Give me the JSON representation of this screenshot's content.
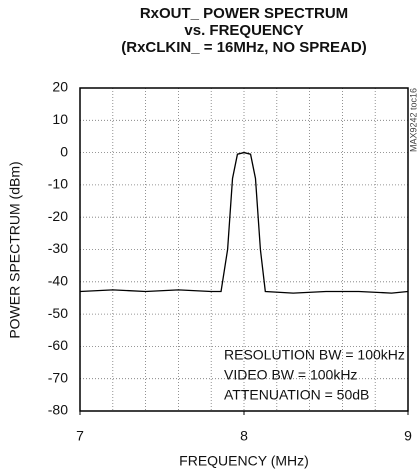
{
  "chart_data": {
    "type": "line",
    "title": [
      "RxOUT_ POWER SPECTRUM",
      "vs. FREQUENCY",
      "(RxCLKIN_ = 16MHz, NO SPREAD)"
    ],
    "xlabel": "FREQUENCY (MHz)",
    "ylabel": "POWER SPECTRUM (dBm)",
    "figure_id": "MAX9242 toc16",
    "annotations": [
      "RESOLUTION BW = 100kHz",
      "VIDEO BW = 100kHz",
      "ATTENUATION = 50dB"
    ],
    "x": [
      7,
      7.2,
      7.4,
      7.6,
      7.8,
      7.86,
      7.9,
      7.93,
      7.96,
      8.0,
      8.04,
      8.07,
      8.1,
      8.13,
      8.3,
      8.5,
      8.7,
      8.9,
      9
    ],
    "series": [
      {
        "name": "RxOUT_",
        "color": "#000000",
        "values": [
          -43,
          -42.5,
          -43,
          -42.5,
          -43,
          -43,
          -30,
          -8,
          -0.5,
          0,
          -0.5,
          -8,
          -30,
          -43,
          -43.5,
          -43,
          -43,
          -43.5,
          -43
        ]
      }
    ],
    "xlim": [
      7,
      9
    ],
    "xticks": [
      7,
      8,
      9
    ],
    "x_grid": [
      7.2,
      7.4,
      7.6,
      7.8,
      8.0,
      8.2,
      8.4,
      8.6,
      8.8
    ],
    "ylim": [
      -80,
      20
    ],
    "yticks": [
      -80,
      -70,
      -60,
      -50,
      -40,
      -30,
      -20,
      -10,
      0,
      10,
      20
    ],
    "grid": true
  }
}
